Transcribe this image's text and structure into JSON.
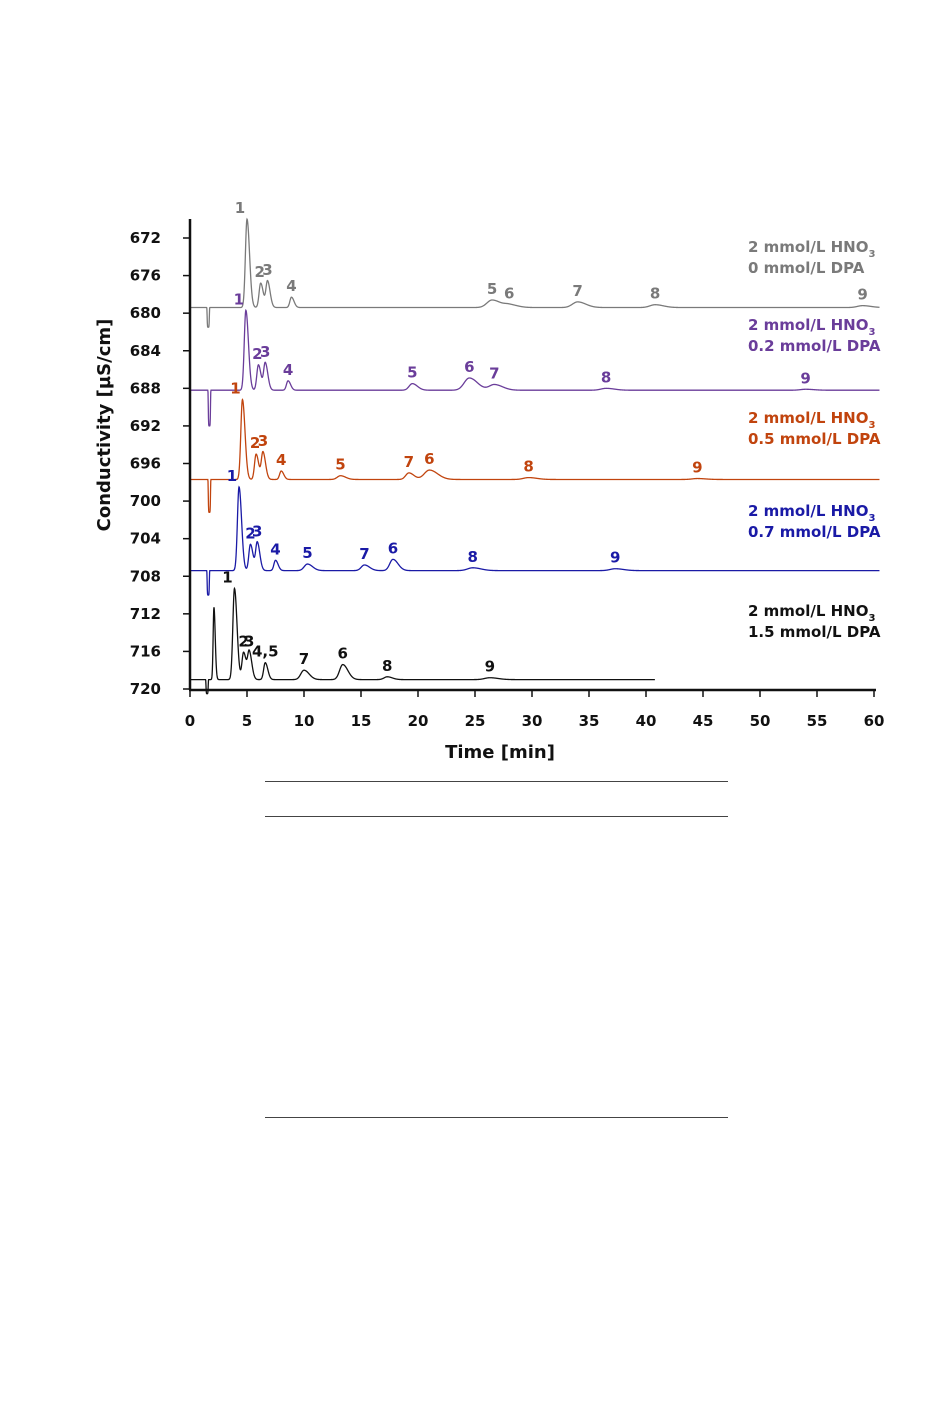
{
  "chart_data": {
    "type": "line",
    "xlabel": "Time [min]",
    "ylabel": "Conductivity [µS/cm]",
    "xlim": [
      0,
      60
    ],
    "ylim": [
      720,
      670
    ],
    "y_axis_inverted": true,
    "grid": false,
    "x_ticks": [
      0,
      5,
      10,
      15,
      20,
      25,
      30,
      35,
      40,
      45,
      50,
      55,
      60
    ],
    "y_ticks": [
      672,
      676,
      680,
      684,
      688,
      692,
      696,
      700,
      704,
      708,
      712,
      716,
      720
    ],
    "series": [
      {
        "name_line1": "2 mmol/L HNO",
        "name_sub": "3",
        "name_line2": "0 mmol/L DPA",
        "color": "#7a7a7a",
        "baseline": 679.4,
        "end_time": 60.5,
        "dip": {
          "time": 1.6,
          "value": 681.5
        },
        "peaks": [
          {
            "label": "1",
            "time": 5.0,
            "apex": 670.0
          },
          {
            "label": "2",
            "time": 6.2,
            "apex": 676.8
          },
          {
            "label": "3",
            "time": 6.8,
            "apex": 676.6
          },
          {
            "label": "4",
            "time": 8.9,
            "apex": 678.3
          },
          {
            "label": "5",
            "time": 26.5,
            "apex": 678.6
          },
          {
            "label": "6",
            "time": 28.0,
            "apex": 679.1
          },
          {
            "label": "7",
            "time": 34.0,
            "apex": 678.8
          },
          {
            "label": "8",
            "time": 40.8,
            "apex": 679.1
          },
          {
            "label": "9",
            "time": 59.0,
            "apex": 679.2
          }
        ]
      },
      {
        "name_line1": "2 mmol/L HNO",
        "name_sub": "3",
        "name_line2": "0.2 mmol/L DPA",
        "color": "#6a3d9a",
        "baseline": 688.2,
        "end_time": 60.5,
        "dip": {
          "time": 1.7,
          "value": 692.0
        },
        "peaks": [
          {
            "label": "1",
            "time": 4.9,
            "apex": 679.7
          },
          {
            "label": "2",
            "time": 6.0,
            "apex": 685.5
          },
          {
            "label": "3",
            "time": 6.6,
            "apex": 685.3
          },
          {
            "label": "4",
            "time": 8.6,
            "apex": 687.2
          },
          {
            "label": "5",
            "time": 19.5,
            "apex": 687.5
          },
          {
            "label": "6",
            "time": 24.5,
            "apex": 686.9
          },
          {
            "label": "7",
            "time": 26.7,
            "apex": 687.6
          },
          {
            "label": "8",
            "time": 36.5,
            "apex": 688.0
          },
          {
            "label": "9",
            "time": 54.0,
            "apex": 688.1
          }
        ]
      },
      {
        "name_line1": "2 mmol/L HNO",
        "name_sub": "3",
        "name_line2": "0.5 mmol/L DPA",
        "color": "#c1440e",
        "baseline": 697.7,
        "end_time": 60.5,
        "dip": {
          "time": 1.7,
          "value": 701.2
        },
        "peaks": [
          {
            "label": "1",
            "time": 4.6,
            "apex": 689.2
          },
          {
            "label": "2",
            "time": 5.8,
            "apex": 695.0
          },
          {
            "label": "3",
            "time": 6.4,
            "apex": 694.8
          },
          {
            "label": "4",
            "time": 8.0,
            "apex": 696.8
          },
          {
            "label": "5",
            "time": 13.2,
            "apex": 697.3
          },
          {
            "label": "7",
            "time": 19.2,
            "apex": 697.0
          },
          {
            "label": "6",
            "time": 21.0,
            "apex": 696.7
          },
          {
            "label": "8",
            "time": 29.7,
            "apex": 697.5
          },
          {
            "label": "9",
            "time": 44.5,
            "apex": 697.6
          }
        ]
      },
      {
        "name_line1": "2 mmol/L HNO",
        "name_sub": "3",
        "name_line2": "0.7 mmol/L DPA",
        "color": "#1a1aa6",
        "baseline": 707.4,
        "end_time": 60.5,
        "dip": {
          "time": 1.6,
          "value": 710.0
        },
        "peaks": [
          {
            "label": "1",
            "time": 4.3,
            "apex": 698.5
          },
          {
            "label": "2",
            "time": 5.3,
            "apex": 704.6
          },
          {
            "label": "3",
            "time": 5.9,
            "apex": 704.4
          },
          {
            "label": "4",
            "time": 7.5,
            "apex": 706.3
          },
          {
            "label": "5",
            "time": 10.3,
            "apex": 706.7
          },
          {
            "label": "7",
            "time": 15.3,
            "apex": 706.8
          },
          {
            "label": "6",
            "time": 17.8,
            "apex": 706.2
          },
          {
            "label": "8",
            "time": 24.8,
            "apex": 707.1
          },
          {
            "label": "9",
            "time": 37.3,
            "apex": 707.2
          }
        ]
      },
      {
        "name_line1": "2 mmol/L HNO",
        "name_sub": "3",
        "name_line2": "1.5 mmol/L DPA",
        "color": "#111111",
        "baseline": 719.0,
        "end_time": 40.8,
        "dip": {
          "time": 1.5,
          "value": 720.5
        },
        "peaks": [
          {
            "label": "",
            "time": 2.1,
            "apex": 711.3
          },
          {
            "label": "1",
            "time": 3.9,
            "apex": 709.3
          },
          {
            "label": "2",
            "time": 4.7,
            "apex": 716.1
          },
          {
            "label": "3",
            "time": 5.2,
            "apex": 716.1
          },
          {
            "label": "4,5",
            "time": 6.6,
            "apex": 717.2
          },
          {
            "label": "7",
            "time": 10.0,
            "apex": 718.0
          },
          {
            "label": "6",
            "time": 13.4,
            "apex": 717.4
          },
          {
            "label": "8",
            "time": 17.3,
            "apex": 718.7
          },
          {
            "label": "9",
            "time": 26.3,
            "apex": 718.8
          }
        ]
      }
    ]
  }
}
